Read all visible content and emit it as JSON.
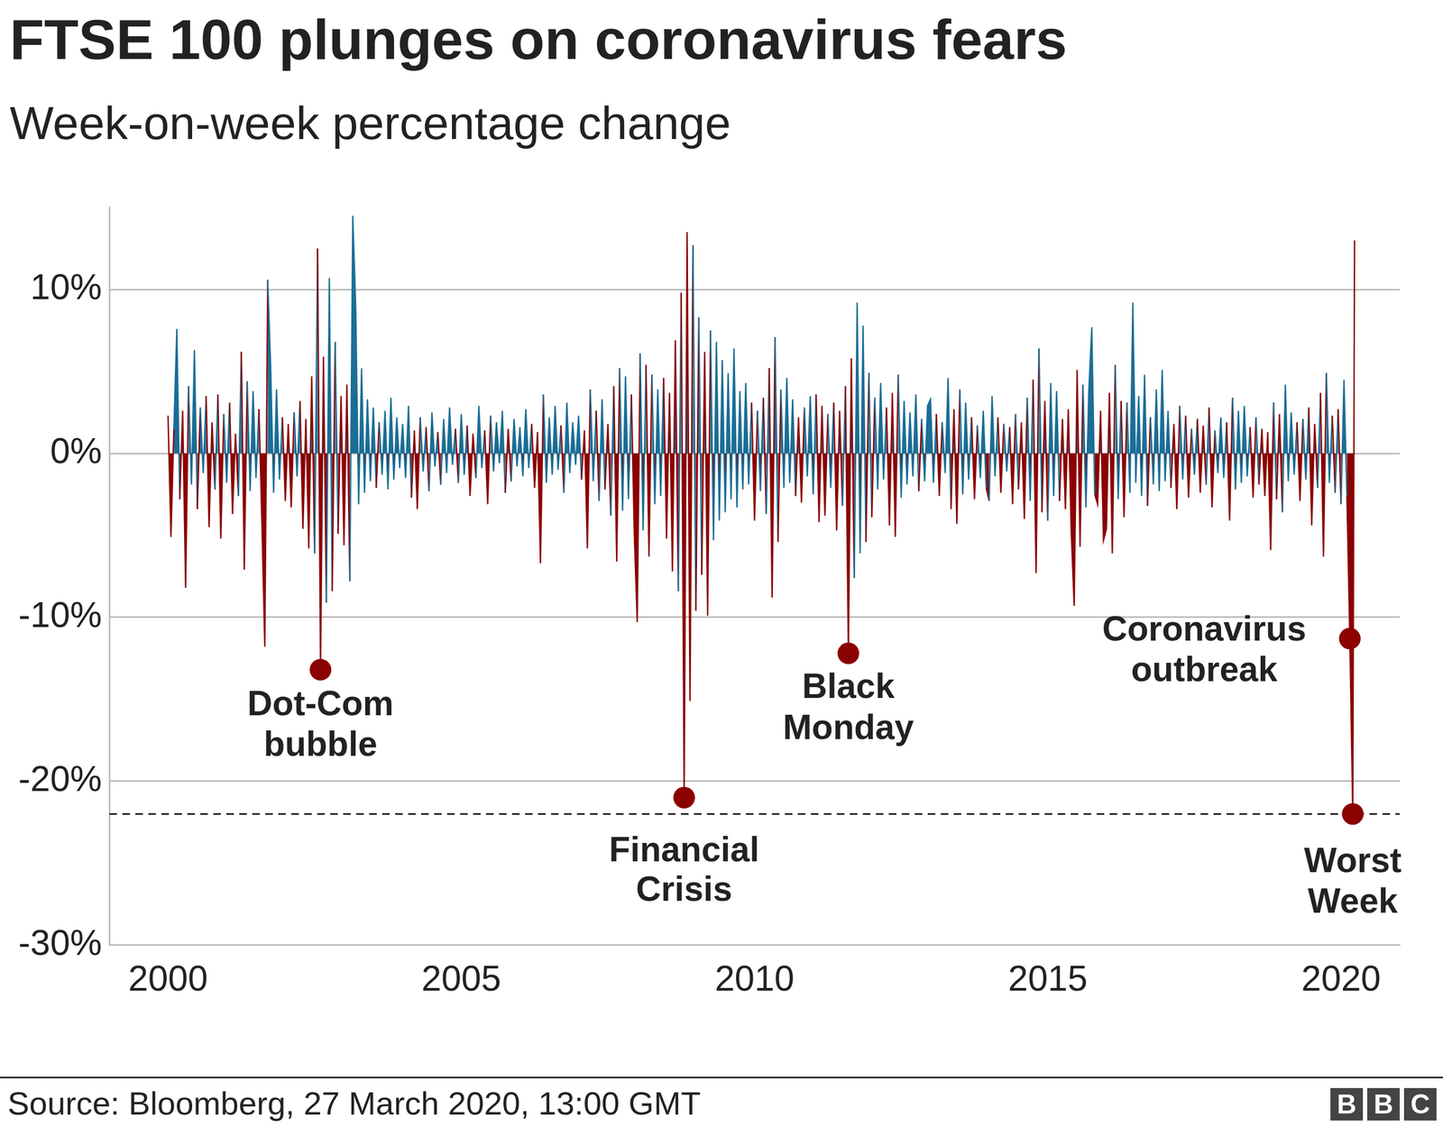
{
  "chart_data": {
    "type": "line",
    "title": "FTSE 100 plunges on coronavirus fears",
    "subtitle": "Week-on-week percentage change",
    "source": "Source: Bloomberg, 27 March 2020, 13:00 GMT",
    "logo": "BBC",
    "color": {
      "above": "#1b6e96",
      "below": "#8b0000"
    },
    "grid": true,
    "xlim": [
      1999,
      2021
    ],
    "xticks": [
      2000,
      2005,
      2010,
      2015,
      2020
    ],
    "ylim": [
      -30,
      15
    ],
    "yticks": [
      {
        "value": -30,
        "label": "-30%"
      },
      {
        "value": -20,
        "label": "-20%"
      },
      {
        "value": -10,
        "label": "-10%"
      },
      {
        "value": 0,
        "label": "0%"
      },
      {
        "value": 10,
        "label": "10%"
      }
    ],
    "reference_line": {
      "value": -22.0,
      "line_style": "dashed"
    },
    "annotations": [
      {
        "text": "Dot-Com bubble",
        "x": 2002.6,
        "y": -13.2,
        "color": "#8b0000",
        "marker": "circle"
      },
      {
        "text": "Financial Crisis",
        "x": 2008.8,
        "y": -21.0,
        "color": "#8b0000",
        "marker": "circle"
      },
      {
        "text": "Black Monday",
        "x": 2011.6,
        "y": -12.2,
        "color": "#8b0000",
        "marker": "circle"
      },
      {
        "text": "Coronavirus outbreak",
        "x": 2020.15,
        "y": -11.3,
        "color": "#8b0000",
        "marker": "circle"
      },
      {
        "text": "Worst Week",
        "x": 2020.2,
        "y": -22.0,
        "color": "#8b0000",
        "marker": "circle"
      }
    ],
    "x": [
      2000,
      2000.05,
      2000.1,
      2000.15,
      2000.2,
      2000.25,
      2000.3,
      2000.35,
      2000.4,
      2000.45,
      2000.5,
      2000.55,
      2000.6,
      2000.65,
      2000.7,
      2000.75,
      2000.8,
      2000.85,
      2000.9,
      2000.95,
      2001,
      2001.05,
      2001.1,
      2001.15,
      2001.2,
      2001.25,
      2001.3,
      2001.35,
      2001.4,
      2001.45,
      2001.5,
      2001.55,
      2001.6,
      2001.65,
      2001.7,
      2001.75,
      2001.8,
      2001.85,
      2001.9,
      2001.95,
      2002,
      2002.05,
      2002.1,
      2002.15,
      2002.2,
      2002.25,
      2002.3,
      2002.35,
      2002.4,
      2002.45,
      2002.5,
      2002.55,
      2002.6,
      2002.65,
      2002.7,
      2002.75,
      2002.8,
      2002.85,
      2002.9,
      2002.95,
      2003,
      2003.05,
      2003.1,
      2003.15,
      2003.2,
      2003.25,
      2003.3,
      2003.35,
      2003.4,
      2003.45,
      2003.5,
      2003.55,
      2003.6,
      2003.65,
      2003.7,
      2003.75,
      2003.8,
      2003.85,
      2003.9,
      2003.95,
      2004,
      2004.05,
      2004.1,
      2004.15,
      2004.2,
      2004.25,
      2004.3,
      2004.35,
      2004.4,
      2004.45,
      2004.5,
      2004.55,
      2004.6,
      2004.65,
      2004.7,
      2004.75,
      2004.8,
      2004.85,
      2004.9,
      2004.95,
      2005,
      2005.05,
      2005.1,
      2005.15,
      2005.2,
      2005.25,
      2005.3,
      2005.35,
      2005.4,
      2005.45,
      2005.5,
      2005.55,
      2005.6,
      2005.65,
      2005.7,
      2005.75,
      2005.8,
      2005.85,
      2005.9,
      2005.95,
      2006,
      2006.05,
      2006.1,
      2006.15,
      2006.2,
      2006.25,
      2006.3,
      2006.35,
      2006.4,
      2006.45,
      2006.5,
      2006.55,
      2006.6,
      2006.65,
      2006.7,
      2006.75,
      2006.8,
      2006.85,
      2006.9,
      2006.95,
      2007,
      2007.05,
      2007.1,
      2007.15,
      2007.2,
      2007.25,
      2007.3,
      2007.35,
      2007.4,
      2007.45,
      2007.5,
      2007.55,
      2007.6,
      2007.65,
      2007.7,
      2007.75,
      2007.8,
      2007.85,
      2007.9,
      2007.95,
      2008,
      2008.05,
      2008.1,
      2008.15,
      2008.2,
      2008.25,
      2008.3,
      2008.35,
      2008.4,
      2008.45,
      2008.5,
      2008.55,
      2008.6,
      2008.65,
      2008.7,
      2008.75,
      2008.8,
      2008.85,
      2008.9,
      2008.95,
      2009,
      2009.05,
      2009.1,
      2009.15,
      2009.2,
      2009.25,
      2009.3,
      2009.35,
      2009.4,
      2009.45,
      2009.5,
      2009.55,
      2009.6,
      2009.65,
      2009.7,
      2009.75,
      2009.8,
      2009.85,
      2009.9,
      2009.95,
      2010,
      2010.05,
      2010.1,
      2010.15,
      2010.2,
      2010.25,
      2010.3,
      2010.35,
      2010.4,
      2010.45,
      2010.5,
      2010.55,
      2010.6,
      2010.65,
      2010.7,
      2010.75,
      2010.8,
      2010.85,
      2010.9,
      2010.95,
      2011,
      2011.05,
      2011.1,
      2011.15,
      2011.2,
      2011.25,
      2011.3,
      2011.35,
      2011.4,
      2011.45,
      2011.5,
      2011.55,
      2011.6,
      2011.65,
      2011.7,
      2011.75,
      2011.8,
      2011.85,
      2011.9,
      2011.95,
      2012,
      2012.05,
      2012.1,
      2012.15,
      2012.2,
      2012.25,
      2012.3,
      2012.35,
      2012.4,
      2012.45,
      2012.5,
      2012.55,
      2012.6,
      2012.65,
      2012.7,
      2012.75,
      2012.8,
      2012.85,
      2012.9,
      2012.95,
      2013,
      2013.05,
      2013.1,
      2013.15,
      2013.2,
      2013.25,
      2013.3,
      2013.35,
      2013.4,
      2013.45,
      2013.5,
      2013.55,
      2013.6,
      2013.65,
      2013.7,
      2013.75,
      2013.8,
      2013.85,
      2013.9,
      2013.95,
      2014,
      2014.05,
      2014.1,
      2014.15,
      2014.2,
      2014.25,
      2014.3,
      2014.35,
      2014.4,
      2014.45,
      2014.5,
      2014.55,
      2014.6,
      2014.65,
      2014.7,
      2014.75,
      2014.8,
      2014.85,
      2014.9,
      2014.95,
      2015,
      2015.05,
      2015.1,
      2015.15,
      2015.2,
      2015.25,
      2015.3,
      2015.35,
      2015.4,
      2015.45,
      2015.5,
      2015.55,
      2015.6,
      2015.65,
      2015.7,
      2015.75,
      2015.8,
      2015.85,
      2015.9,
      2015.95,
      2016,
      2016.05,
      2016.1,
      2016.15,
      2016.2,
      2016.25,
      2016.3,
      2016.35,
      2016.4,
      2016.45,
      2016.5,
      2016.55,
      2016.6,
      2016.65,
      2016.7,
      2016.75,
      2016.8,
      2016.85,
      2016.9,
      2016.95,
      2017,
      2017.05,
      2017.1,
      2017.15,
      2017.2,
      2017.25,
      2017.3,
      2017.35,
      2017.4,
      2017.45,
      2017.5,
      2017.55,
      2017.6,
      2017.65,
      2017.7,
      2017.75,
      2017.8,
      2017.85,
      2017.9,
      2017.95,
      2018,
      2018.05,
      2018.1,
      2018.15,
      2018.2,
      2018.25,
      2018.3,
      2018.35,
      2018.4,
      2018.45,
      2018.5,
      2018.55,
      2018.6,
      2018.65,
      2018.7,
      2018.75,
      2018.8,
      2018.85,
      2018.9,
      2018.95,
      2019,
      2019.05,
      2019.1,
      2019.15,
      2019.2,
      2019.25,
      2019.3,
      2019.35,
      2019.4,
      2019.45,
      2019.5,
      2019.55,
      2019.6,
      2019.65,
      2019.7,
      2019.75,
      2019.8,
      2019.85,
      2019.9,
      2019.95,
      2020,
      2020.05,
      2020.1,
      2020.15,
      2020.2,
      2020.23
    ],
    "values": [
      2.3,
      -5.1,
      1.5,
      7.6,
      -2.8,
      2.6,
      -8.2,
      4.1,
      -1.9,
      6.3,
      -3.4,
      2.8,
      -1.2,
      3.5,
      -4.5,
      1.9,
      -2.2,
      3.6,
      -5.2,
      2.4,
      -1.8,
      3.1,
      -3.7,
      1.2,
      -2.6,
      6.2,
      -7.1,
      4.4,
      -2.3,
      3.8,
      -1.5,
      2.7,
      -4.1,
      -11.8,
      10.6,
      5.3,
      -2.4,
      3.9,
      -1.6,
      2.2,
      -2.9,
      1.8,
      -3.3,
      2.5,
      -1.4,
      3.2,
      -4.6,
      2.1,
      -5.8,
      4.7,
      -6.1,
      12.5,
      -13.2,
      5.9,
      -9.1,
      10.7,
      -8.4,
      6.8,
      -4.9,
      3.5,
      -5.6,
      4.2,
      -7.8,
      14.5,
      8.9,
      -3.1,
      5.2,
      -2.4,
      3.3,
      -1.7,
      2.8,
      -2.1,
      1.9,
      -1.3,
      2.6,
      -2.2,
      3.4,
      -1.6,
      2.2,
      -0.9,
      1.8,
      -1.5,
      2.9,
      -2.7,
      1.4,
      -3.4,
      2.2,
      -1.1,
      1.6,
      -2.3,
      2.5,
      -0.8,
      1.3,
      -1.9,
      2.1,
      -1.2,
      2.8,
      -0.7,
      1.5,
      -1.8,
      2.4,
      -1.3,
      1.7,
      -2.6,
      1.2,
      -1.5,
      2.9,
      -0.9,
      1.4,
      -3.1,
      2.3,
      -1.1,
      1.9,
      -0.6,
      2.6,
      -2.4,
      1.5,
      -1.7,
      2.1,
      -0.8,
      1.6,
      -1.4,
      2.7,
      -0.9,
      1.8,
      -2.1,
      1.3,
      -6.7,
      3.6,
      -1.8,
      2.2,
      -1.3,
      2.9,
      -1.0,
      1.7,
      -2.4,
      3.1,
      -1.2,
      1.9,
      -0.7,
      2.3,
      -1.6,
      1.4,
      -5.8,
      3.9,
      -1.7,
      2.6,
      -2.9,
      3.3,
      -2.2,
      1.8,
      -3.8,
      4.1,
      -6.6,
      5.2,
      -3.5,
      4.7,
      -2.8,
      3.6,
      -4.9,
      -10.3,
      6.1,
      -4.7,
      5.4,
      -6.3,
      4.8,
      -3.1,
      3.9,
      -2.6,
      4.6,
      -5.2,
      3.7,
      -7.2,
      6.9,
      -8.4,
      9.8,
      -21.0,
      13.5,
      -15.1,
      12.7,
      -9.6,
      8.3,
      -7.4,
      6.2,
      -9.9,
      7.5,
      -5.3,
      6.8,
      -4.1,
      5.7,
      -3.6,
      4.9,
      -2.8,
      6.4,
      -3.3,
      3.8,
      -2.2,
      4.3,
      -1.9,
      3.1,
      -4.1,
      2.6,
      -2.3,
      3.4,
      -3.7,
      5.2,
      -8.8,
      7.1,
      -5.4,
      3.9,
      -2.1,
      4.6,
      -1.8,
      3.3,
      -2.6,
      2.2,
      -3.0,
      2.8,
      -1.4,
      3.5,
      -2.5,
      3.6,
      -4.2,
      2.9,
      -3.8,
      2.4,
      -2.1,
      3.1,
      -4.7,
      2.6,
      -3.2,
      4.1,
      -12.2,
      5.8,
      -7.6,
      9.2,
      -6.1,
      7.8,
      -5.4,
      4.9,
      -3.9,
      3.4,
      -2.2,
      4.3,
      -1.6,
      2.8,
      -4.4,
      3.7,
      -5.1,
      4.8,
      -2.7,
      3.2,
      -1.9,
      2.5,
      -1.4,
      3.6,
      -2.3,
      2.1,
      -1.7,
      2.9,
      3.3,
      -1.8,
      2.4,
      -2.6,
      1.9,
      -1.2,
      4.6,
      -3.4,
      2.7,
      -4.3,
      3.9,
      -2.5,
      3.1,
      -1.6,
      2.2,
      -2.8,
      1.7,
      -1.5,
      2.6,
      -2.1,
      -2.9,
      3.5,
      -1.4,
      2.2,
      -2.4,
      1.8,
      -1.1,
      1.6,
      -3.1,
      2.4,
      -2.2,
      1.9,
      -4.0,
      3.4,
      -2.9,
      4.5,
      -7.3,
      6.4,
      -3.6,
      3.2,
      -4.1,
      4.3,
      -2.6,
      3.8,
      -2.9,
      2.1,
      -3.4,
      2.7,
      -4.8,
      -9.3,
      5.1,
      -5.7,
      4.2,
      -3.3,
      3.9,
      7.7,
      -2.5,
      -3.1,
      2.6,
      -5.3,
      -4.6,
      3.7,
      -6.1,
      5.4,
      -2.8,
      3.2,
      -3.9,
      3.1,
      -2.4,
      9.2,
      -1.8,
      3.5,
      -2.6,
      4.8,
      -3.2,
      2.2,
      -1.9,
      3.9,
      -2.3,
      5.1,
      -1.7,
      2.6,
      -2.1,
      1.8,
      -3.4,
      2.9,
      -1.6,
      2.3,
      -2.7,
      1.5,
      -1.3,
      2.1,
      -2.4,
      1.7,
      -1.9,
      2.8,
      -3.3,
      1.4,
      -1.2,
      2.2,
      -1.5,
      1.9,
      -4.1,
      3.4,
      -2.2,
      2.6,
      -1.8,
      2.9,
      -1.4,
      1.6,
      -2.7,
      2.2,
      -1.9,
      1.5,
      -2.6,
      1.3,
      -5.9,
      3.1,
      -2.8,
      2.4,
      -3.6,
      4.2,
      -1.7,
      2.5,
      -1.3,
      1.9,
      -2.9,
      2.1,
      -1.6,
      2.8,
      -4.4,
      1.8,
      -2.1,
      3.7,
      -6.3,
      4.9,
      -1.8,
      2.3,
      -2.4,
      2.7,
      -3.1,
      4.5,
      -2.6,
      -11.3,
      -22.0,
      13.0
    ]
  }
}
